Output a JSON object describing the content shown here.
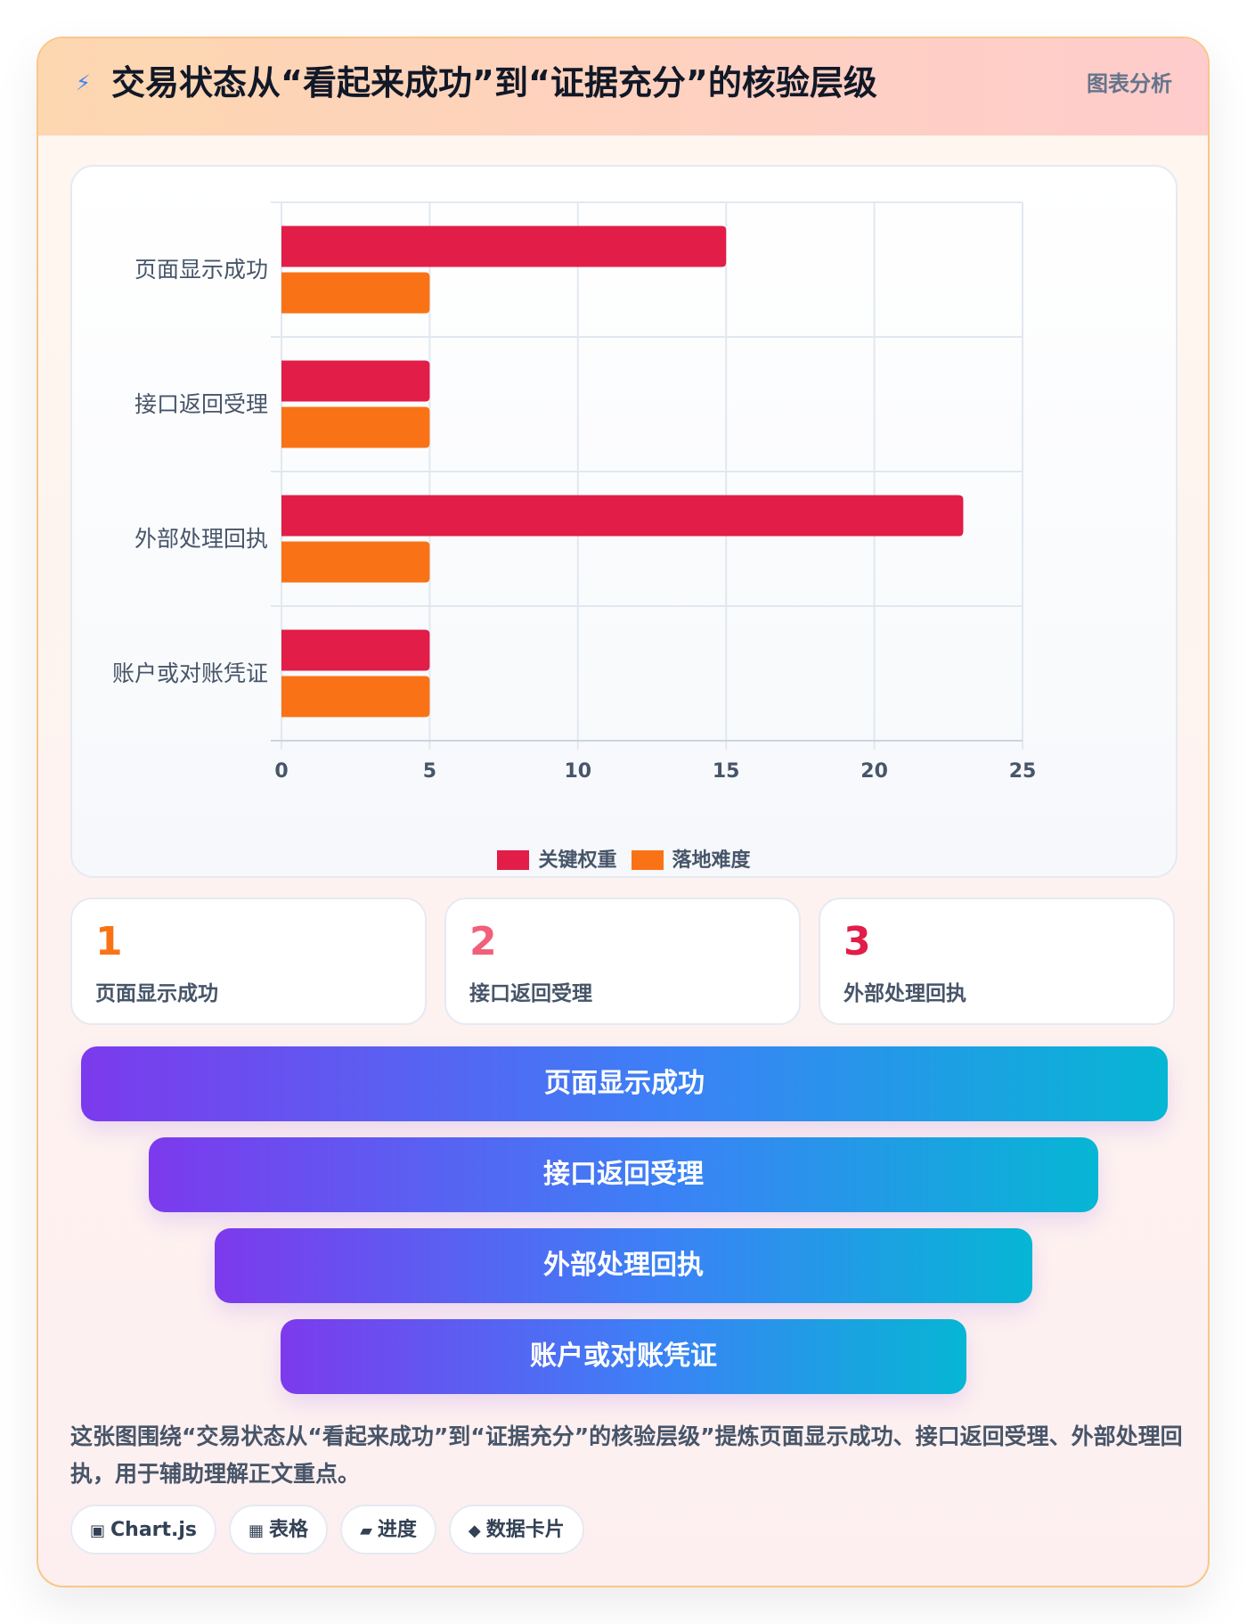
{
  "header": {
    "icon": "lightning-icon",
    "icon_glyph": "⚡",
    "title": "交易状态从“看起来成功”到“证据充分”的核验层级",
    "tag": "图表分析"
  },
  "chart_data": {
    "type": "bar",
    "orientation": "horizontal",
    "categories": [
      "页面显示成功",
      "接口返回受理",
      "外部处理回执",
      "账户或对账凭证"
    ],
    "series": [
      {
        "name": "关键权重",
        "color": "#e11d48",
        "values": [
          15,
          5,
          23,
          5
        ]
      },
      {
        "name": "落地难度",
        "color": "#f97316",
        "values": [
          5,
          5,
          5,
          5
        ]
      }
    ],
    "xlim": [
      0,
      25
    ],
    "xticks": [
      0,
      5,
      10,
      15,
      20,
      25
    ],
    "grid": true,
    "legend": "bottom-center"
  },
  "steps": [
    {
      "num": "1",
      "label": "页面显示成功",
      "color": "#f97316"
    },
    {
      "num": "2",
      "label": "接口返回受理",
      "color": "#f25f7a"
    },
    {
      "num": "3",
      "label": "外部处理回执",
      "color": "#e11d48"
    }
  ],
  "funnel": [
    "页面显示成功",
    "接口返回受理",
    "外部处理回执",
    "账户或对账凭证"
  ],
  "description": "这张图围绕“交易状态从“看起来成功”到“证据充分”的核验层级”提炼页面显示成功、接口返回受理、外部处理回执，用于辅助理解正文重点。",
  "chips": [
    {
      "icon": "chart-icon",
      "glyph": "▣",
      "label": "Chart.js"
    },
    {
      "icon": "table-icon",
      "glyph": "▦",
      "label": "表格"
    },
    {
      "icon": "progress-icon",
      "glyph": "▰",
      "label": "进度"
    },
    {
      "icon": "diamond-icon",
      "glyph": "◆",
      "label": "数据卡片"
    }
  ]
}
